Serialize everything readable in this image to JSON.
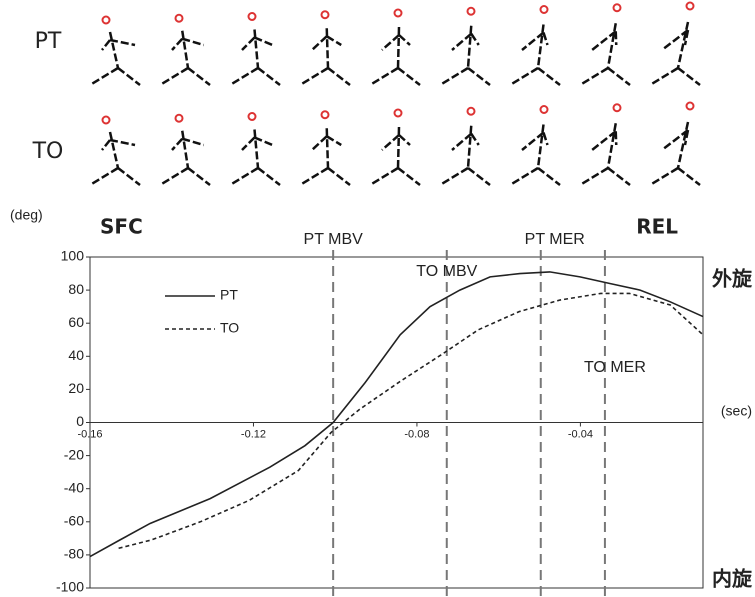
{
  "row_labels": [
    "PT",
    "TO"
  ],
  "chart_data": {
    "type": "line",
    "y_unit": "(deg)",
    "x_unit": "(sec)",
    "phase_start": "SFC",
    "phase_end": "REL",
    "top_label": "外旋",
    "bottom_label": "内旋",
    "xlim": [
      -0.16,
      -0.01
    ],
    "ylim": [
      -100,
      100
    ],
    "xticks": [
      -0.16,
      -0.12,
      -0.08,
      -0.04
    ],
    "yticks": [
      -100,
      -80,
      -60,
      -40,
      -20,
      0,
      20,
      40,
      60,
      80,
      100
    ],
    "events": [
      {
        "label": "PT MBV",
        "x": -0.1005
      },
      {
        "label": "TO MBV",
        "x": -0.0727
      },
      {
        "label": "PT MER",
        "x": -0.0497
      },
      {
        "label": "TO MER",
        "x": -0.034
      }
    ],
    "series": [
      {
        "name": "PT",
        "color": "#222222",
        "dash": "none",
        "x": [
          -0.16,
          -0.1527,
          -0.1453,
          -0.1306,
          -0.116,
          -0.1074,
          -0.1005,
          -0.0927,
          -0.0841,
          -0.0768,
          -0.0695,
          -0.0621,
          -0.0548,
          -0.0475,
          -0.0401,
          -0.0328,
          -0.0254,
          -0.0181,
          -0.01
        ],
        "values": [
          -81,
          -71,
          -61,
          -46,
          -27,
          -14,
          0,
          24,
          53,
          70,
          80,
          88,
          90,
          91,
          88,
          84,
          80,
          73,
          64
        ]
      },
      {
        "name": "TO",
        "color": "#222222",
        "dash": "4 3",
        "x": [
          -0.153,
          -0.145,
          -0.133,
          -0.121,
          -0.109,
          -0.101,
          -0.094,
          -0.084,
          -0.074,
          -0.065,
          -0.055,
          -0.045,
          -0.035,
          -0.028,
          -0.018,
          -0.01
        ],
        "values": [
          -76,
          -71,
          -60,
          -47,
          -29,
          -6,
          8,
          25,
          41,
          56,
          67,
          74,
          78,
          78,
          71,
          53
        ]
      }
    ]
  }
}
